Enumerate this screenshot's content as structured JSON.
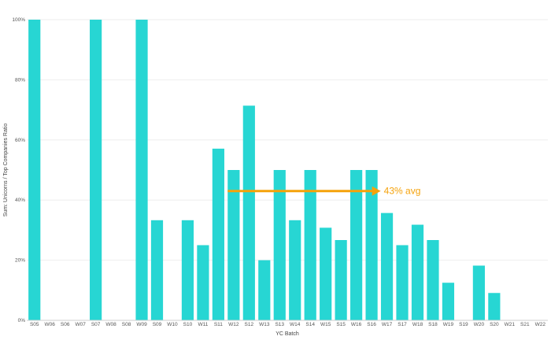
{
  "chart_data": {
    "type": "bar",
    "xlabel": "YC Batch",
    "ylabel": "Sum: Unicorns / Top Companies Ratio",
    "ylim": [
      0,
      100
    ],
    "yticks": [
      0,
      20,
      40,
      60,
      80,
      100
    ],
    "ytick_labels": [
      "0%",
      "20%",
      "40%",
      "60%",
      "80%",
      "100%"
    ],
    "grid": true,
    "bar_color": "#27D6D3",
    "categories": [
      "S05",
      "W06",
      "S06",
      "W07",
      "S07",
      "W08",
      "S08",
      "W09",
      "S09",
      "W10",
      "S10",
      "W11",
      "S11",
      "W12",
      "S12",
      "W13",
      "S13",
      "W14",
      "S14",
      "W15",
      "S15",
      "W16",
      "S16",
      "W17",
      "S17",
      "W18",
      "S18",
      "W19",
      "S19",
      "W20",
      "S20",
      "W21",
      "S21",
      "W22"
    ],
    "values": [
      100,
      0,
      0,
      0,
      100,
      0,
      0,
      100,
      33.3,
      0,
      33.3,
      25,
      57.1,
      50,
      71.4,
      20,
      50,
      33.3,
      50,
      30.8,
      26.7,
      50,
      50,
      35.7,
      25,
      31.8,
      26.7,
      12.5,
      0,
      18.2,
      9.1,
      0,
      0,
      0
    ],
    "annotations": [
      {
        "text": "43% avg",
        "value": 43,
        "from_category": "W12",
        "to_category": "S16",
        "color": "#F5A20A"
      }
    ]
  }
}
